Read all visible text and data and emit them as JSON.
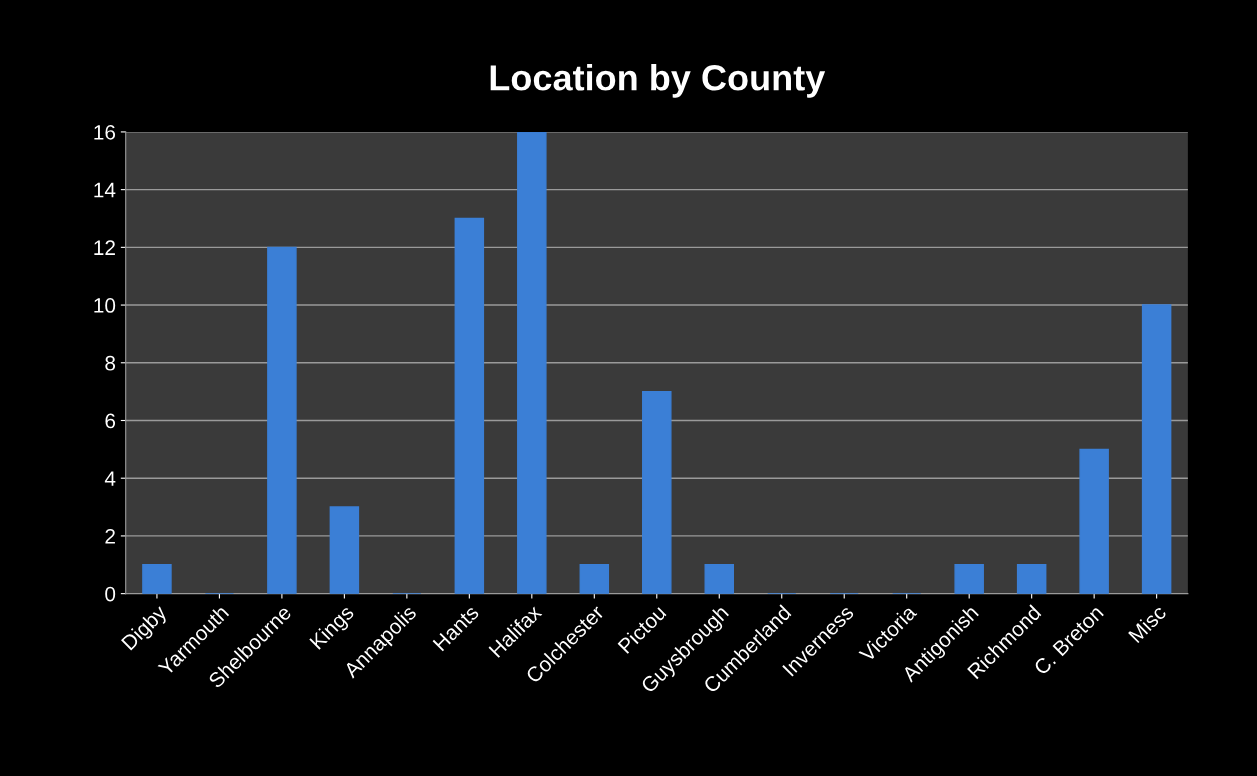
{
  "chart_data": {
    "type": "bar",
    "title": "Location by County",
    "categories": [
      "Digby",
      "Yarmouth",
      "Shelbourne",
      "Kings",
      "Annapolis",
      "Hants",
      "Halifax",
      "Colchester",
      "Pictou",
      "Guysbrough",
      "Cumberland",
      "Inverness",
      "Victoria",
      "Antigonish",
      "Richmond",
      "C. Breton",
      "Misc"
    ],
    "values": [
      1,
      0,
      12,
      3,
      0,
      13,
      16,
      1,
      7,
      1,
      0,
      0,
      0,
      1,
      1,
      5,
      10
    ],
    "color": "#3b7fd6",
    "ylim": [
      0,
      16
    ],
    "yticks": [
      0,
      2,
      4,
      6,
      8,
      10,
      12,
      14,
      16
    ],
    "grid": "y",
    "legend": false
  }
}
